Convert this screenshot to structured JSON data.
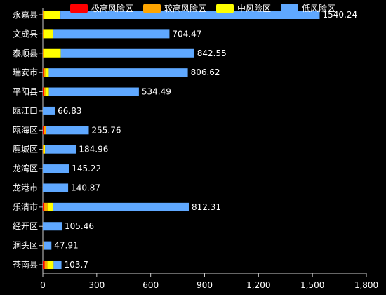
{
  "chart_data": {
    "type": "bar",
    "orientation": "horizontal",
    "stacked": true,
    "categories": [
      "永嘉县",
      "文成县",
      "泰顺县",
      "瑞安市",
      "平阳县",
      "瓯江口",
      "瓯海区",
      "鹿城区",
      "龙湾区",
      "龙港市",
      "乐清市",
      "经开区",
      "洞头区",
      "苍南县"
    ],
    "series": [
      {
        "name": "极高风险区",
        "color": "#ff0000",
        "values": [
          0,
          0,
          0,
          3,
          4,
          0,
          6,
          0,
          0,
          0,
          8,
          0,
          0,
          10
        ]
      },
      {
        "name": "较高风险区",
        "color": "#ffa500",
        "values": [
          8,
          5,
          5,
          10,
          10,
          0,
          10,
          7,
          0,
          0,
          18,
          0,
          3,
          15
        ]
      },
      {
        "name": "中风险区",
        "color": "#ffff00",
        "values": [
          90,
          50,
          95,
          20,
          20,
          0,
          0,
          5,
          0,
          0,
          30,
          0,
          0,
          35
        ]
      },
      {
        "name": "低风险区",
        "color": "#5fa8ff",
        "values": [
          1442.24,
          649.47,
          742.55,
          773.62,
          500.49,
          66.83,
          239.76,
          172.96,
          145.22,
          140.87,
          756.31,
          105.46,
          44.91,
          43.7
        ]
      }
    ],
    "totals": [
      "1540.24",
      "704.47",
      "842.55",
      "806.62",
      "534.49",
      "66.83",
      "255.76",
      "184.96",
      "145.22",
      "140.87",
      "812.31",
      "105.46",
      "47.91",
      "103.7"
    ],
    "x_ticks": [
      "0",
      "300",
      "600",
      "900",
      "1,200",
      "1,500",
      "1,800"
    ],
    "xlim": [
      0,
      1800
    ],
    "legend_position": "top",
    "grid": false
  }
}
